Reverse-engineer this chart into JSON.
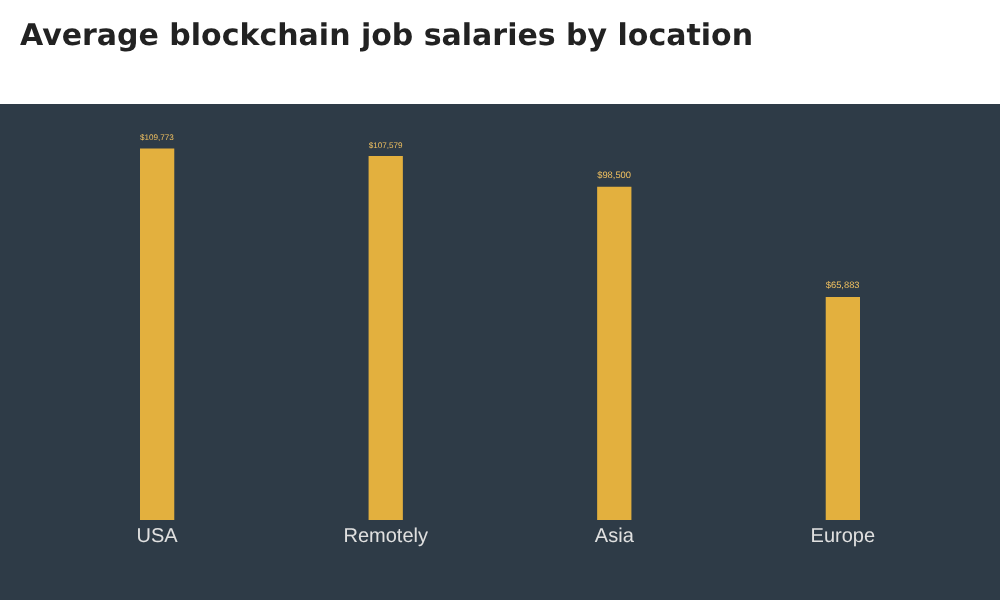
{
  "chart_data": {
    "type": "bar",
    "title": "Average blockchain job salaries by location",
    "categories": [
      "USA",
      "Remotely",
      "Asia",
      "Europe"
    ],
    "values": [
      109773,
      107579,
      98500,
      65883
    ],
    "value_labels": [
      "$109,773",
      "$107,579",
      "$98,500",
      "$65,883"
    ],
    "color": "#e3b03e",
    "grid": false,
    "legend": false
  }
}
